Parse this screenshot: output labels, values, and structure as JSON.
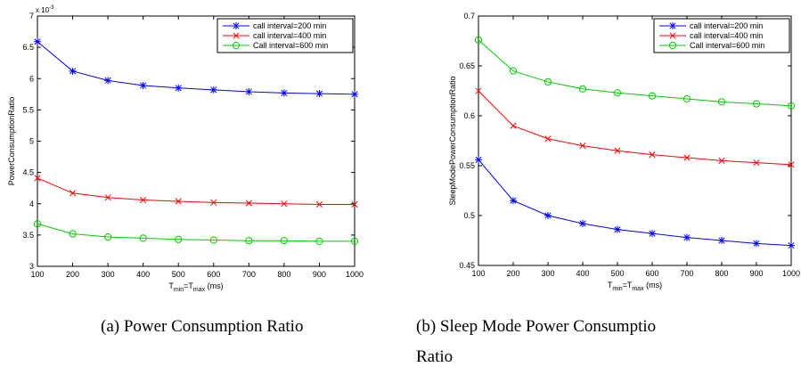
{
  "chart_data": [
    {
      "type": "line",
      "caption": "(a) Power Consumption Ratio",
      "xlabel_parts": [
        "T",
        "min",
        "=T",
        "max",
        " (ms)"
      ],
      "ylabel": "PowerConsumptionRatio",
      "exponent_label": [
        "x 10",
        "-3"
      ],
      "xlim": [
        100,
        1000
      ],
      "ylim": [
        3,
        7
      ],
      "x": [
        100,
        200,
        300,
        400,
        500,
        600,
        700,
        800,
        900,
        1000
      ],
      "xticks": [
        100,
        200,
        300,
        400,
        500,
        600,
        700,
        800,
        900,
        1000
      ],
      "yticks": [
        3,
        3.5,
        4,
        4.5,
        5,
        5.5,
        6,
        6.5,
        7
      ],
      "ytick_labels": [
        "3",
        "3.5",
        "4",
        "4.5",
        "5",
        "5.5",
        "6",
        "6.5",
        "7"
      ],
      "legend_position": "top-right",
      "series": [
        {
          "name": "call interval=200 min",
          "color": "#0000ff",
          "marker": "asterisk",
          "values": [
            6.59,
            6.12,
            5.97,
            5.89,
            5.85,
            5.82,
            5.79,
            5.77,
            5.76,
            5.75
          ]
        },
        {
          "name": "call interval=400 min",
          "color": "#ff0000",
          "marker": "x",
          "values": [
            4.41,
            4.17,
            4.1,
            4.06,
            4.04,
            4.02,
            4.01,
            4.0,
            3.99,
            3.99
          ]
        },
        {
          "name": "Call interval=600 min",
          "color": "#00cc00",
          "marker": "circle",
          "values": [
            3.68,
            3.52,
            3.47,
            3.45,
            3.43,
            3.42,
            3.41,
            3.41,
            3.4,
            3.4
          ]
        }
      ]
    },
    {
      "type": "line",
      "caption": "(b) Sleep Mode Power Consumption Ratio",
      "caption_lines": [
        "(b) Sleep Mode Power Consumptio",
        "Ratio"
      ],
      "xlabel_parts": [
        "T",
        "min",
        "=T",
        "max",
        " (ms)"
      ],
      "ylabel": "SleepModePowerConsumptionRatio",
      "xlim": [
        100,
        1000
      ],
      "ylim": [
        0.45,
        0.7
      ],
      "x": [
        100,
        200,
        300,
        400,
        500,
        600,
        700,
        800,
        900,
        1000
      ],
      "xticks": [
        100,
        200,
        300,
        400,
        500,
        600,
        700,
        800,
        900,
        1000
      ],
      "yticks": [
        0.45,
        0.5,
        0.55,
        0.6,
        0.65,
        0.7
      ],
      "ytick_labels": [
        "0.45",
        "0.5",
        "0.55",
        "0.6",
        "0.65",
        "0.7"
      ],
      "legend_position": "top-right",
      "series": [
        {
          "name": "call interval=200 min",
          "color": "#0000ff",
          "marker": "asterisk",
          "values": [
            0.556,
            0.515,
            0.5,
            0.492,
            0.486,
            0.482,
            0.478,
            0.475,
            0.472,
            0.47
          ]
        },
        {
          "name": "call interval=400 min",
          "color": "#ff0000",
          "marker": "x",
          "values": [
            0.625,
            0.59,
            0.577,
            0.57,
            0.565,
            0.561,
            0.558,
            0.555,
            0.553,
            0.551
          ]
        },
        {
          "name": "Call interval=600 min",
          "color": "#00cc00",
          "marker": "circle",
          "values": [
            0.676,
            0.645,
            0.634,
            0.627,
            0.623,
            0.62,
            0.617,
            0.614,
            0.612,
            0.61
          ]
        }
      ]
    }
  ]
}
